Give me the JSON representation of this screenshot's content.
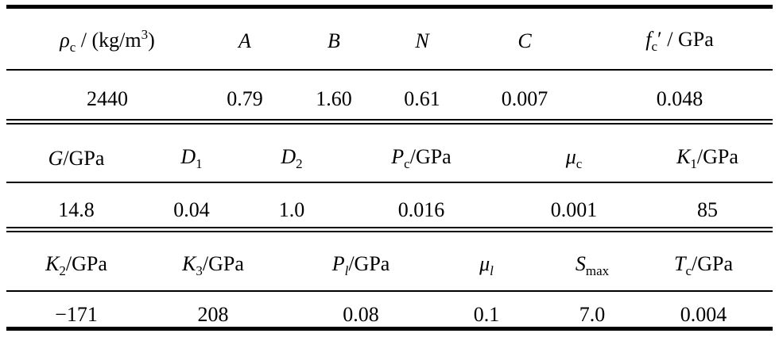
{
  "table": {
    "blocks": [
      {
        "header": [
          [
            {
              "text": "ρ",
              "style": "i"
            },
            {
              "text": "c",
              "style": "sub"
            },
            {
              "text": " / (kg/m"
            },
            {
              "text": "3",
              "style": "sup"
            },
            {
              "text": ")"
            }
          ],
          [
            {
              "text": "A",
              "style": "i"
            }
          ],
          [
            {
              "text": "B",
              "style": "i"
            }
          ],
          [
            {
              "text": "N",
              "style": "i"
            }
          ],
          [
            {
              "text": "C",
              "style": "i"
            }
          ],
          [
            {
              "text": "f",
              "style": "i"
            },
            {
              "text": "c",
              "style": "sub"
            },
            {
              "text": "′"
            },
            {
              "text": " / GPa"
            }
          ]
        ],
        "values": [
          "2440",
          "0.79",
          "1.60",
          "0.61",
          "0.007",
          "0.048"
        ]
      },
      {
        "header": [
          [
            {
              "text": "G",
              "style": "i"
            },
            {
              "text": "/GPa"
            }
          ],
          [
            {
              "text": "D",
              "style": "i"
            },
            {
              "text": "1",
              "style": "sub"
            }
          ],
          [
            {
              "text": "D",
              "style": "i"
            },
            {
              "text": "2",
              "style": "sub"
            }
          ],
          [
            {
              "text": "P",
              "style": "i"
            },
            {
              "text": "c",
              "style": "sub"
            },
            {
              "text": "/GPa"
            }
          ],
          [
            {
              "text": "μ",
              "style": "i"
            },
            {
              "text": "c",
              "style": "sub"
            }
          ],
          [
            {
              "text": "K",
              "style": "i"
            },
            {
              "text": "1",
              "style": "sub"
            },
            {
              "text": "/GPa"
            }
          ]
        ],
        "values": [
          "14.8",
          "0.04",
          "1.0",
          "0.016",
          "0.001",
          "85"
        ]
      },
      {
        "header": [
          [
            {
              "text": "K",
              "style": "i"
            },
            {
              "text": "2",
              "style": "sub"
            },
            {
              "text": "/GPa"
            }
          ],
          [
            {
              "text": "K",
              "style": "i"
            },
            {
              "text": "3",
              "style": "sub"
            },
            {
              "text": "/GPa"
            }
          ],
          [
            {
              "text": "P",
              "style": "i"
            },
            {
              "text": "l",
              "style": "isub"
            },
            {
              "text": "/GPa"
            }
          ],
          [
            {
              "text": "μ",
              "style": "i"
            },
            {
              "text": "l",
              "style": "isub"
            }
          ],
          [
            {
              "text": "S",
              "style": "i"
            },
            {
              "text": "max",
              "style": "sub"
            }
          ],
          [
            {
              "text": "T",
              "style": "i"
            },
            {
              "text": "c",
              "style": "sub"
            },
            {
              "text": "/GPa"
            }
          ]
        ],
        "values": [
          "−171",
          "208",
          "0.08",
          "0.1",
          "7.0",
          "0.004"
        ]
      }
    ]
  }
}
